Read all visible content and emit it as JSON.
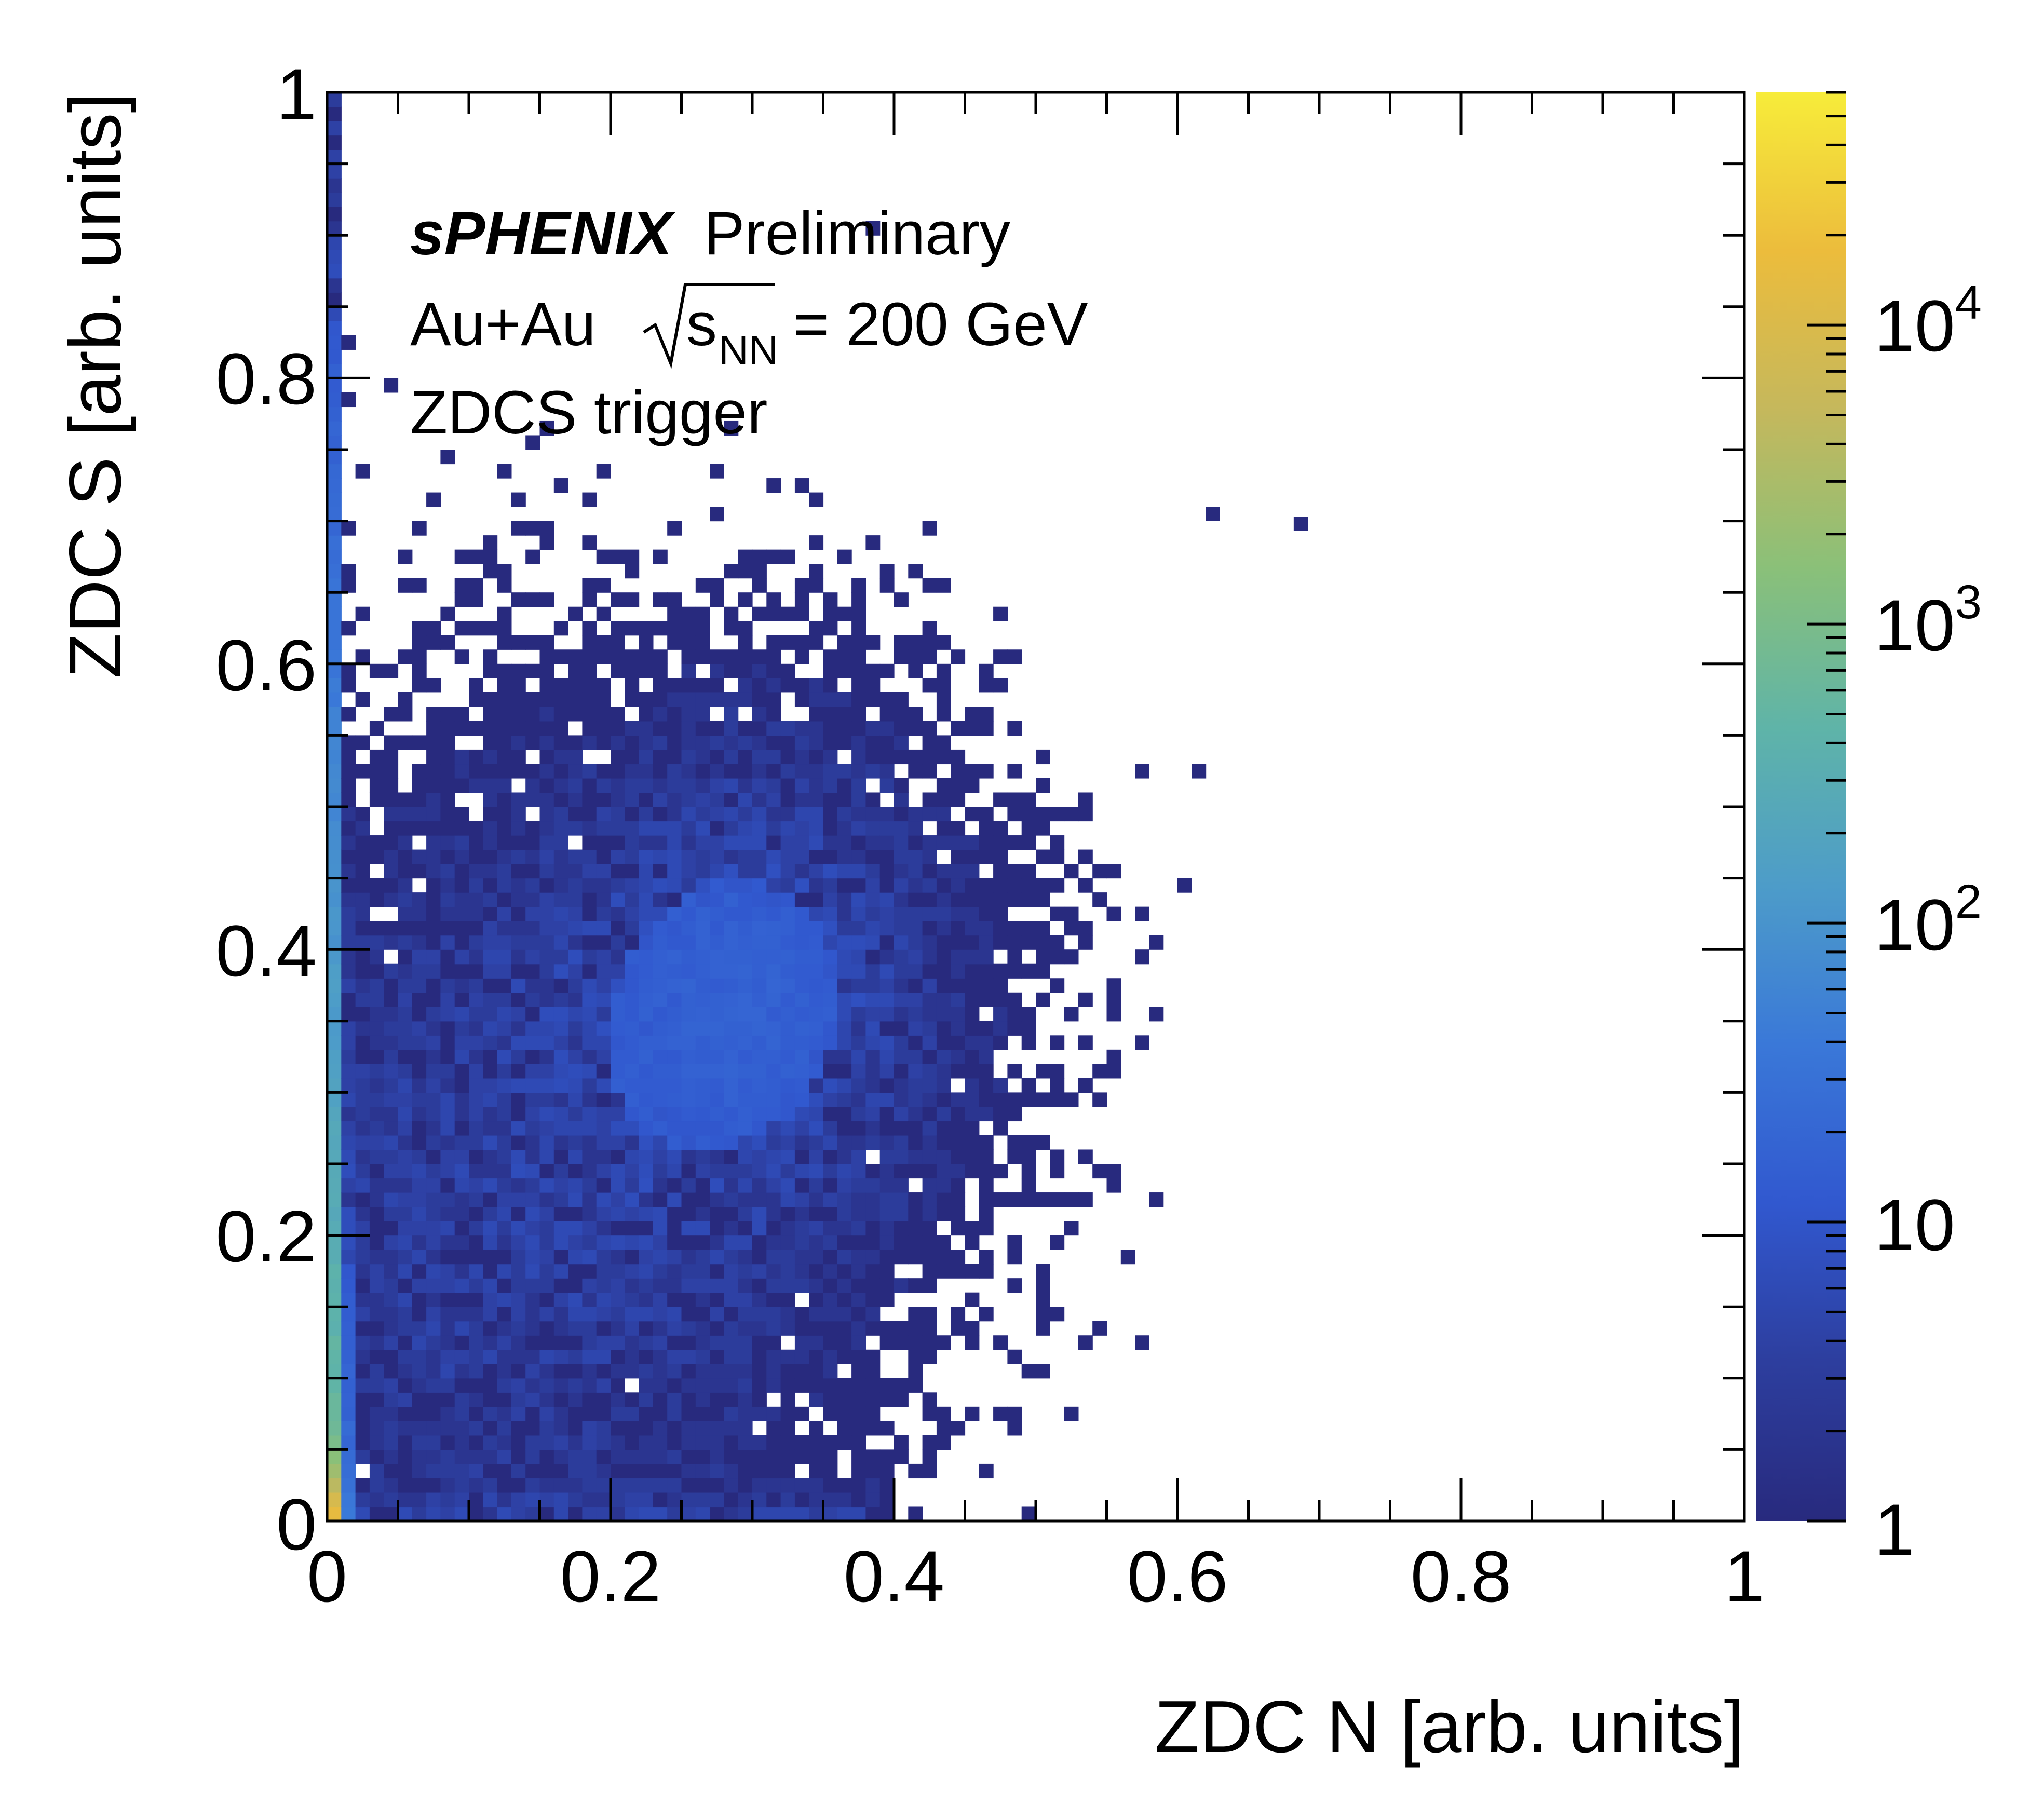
{
  "chart_data": {
    "type": "heatmap",
    "title": "",
    "xlabel": "ZDC N [arb. units]",
    "ylabel": "ZDC S [arb. units]",
    "xlim": [
      0,
      1
    ],
    "ylim": [
      0,
      1
    ],
    "x_ticks": [
      "0",
      "0.2",
      "0.4",
      "0.6",
      "0.8",
      "1"
    ],
    "y_ticks": [
      "0",
      "0.2",
      "0.4",
      "0.6",
      "0.8",
      "1"
    ],
    "annotations": {
      "experiment": "sPHENIX",
      "status": "Preliminary",
      "system": "Au+Au",
      "sqrt_label": "s",
      "sqrt_subscript": "NN",
      "energy": "= 200 GeV",
      "trigger": "ZDCS trigger"
    },
    "colorbar": {
      "scale": "log",
      "range": [
        1,
        60000
      ],
      "ticks": [
        {
          "value": 1,
          "base": "1",
          "exp": ""
        },
        {
          "value": 10,
          "base": "10",
          "exp": ""
        },
        {
          "value": 100,
          "base": "10",
          "exp": "2"
        },
        {
          "value": 1000,
          "base": "10",
          "exp": "3"
        },
        {
          "value": 10000,
          "base": "10",
          "exp": "4"
        }
      ],
      "palette": [
        "#282a7e",
        "#2d3e9e",
        "#3158cf",
        "#3a78d8",
        "#4d9cc9",
        "#5fb4a8",
        "#8ac079",
        "#c5b85c",
        "#ecbc3c",
        "#f7ec3a"
      ]
    },
    "bins": {
      "nx": 100,
      "ny": 100,
      "bin_width": 0.01
    },
    "distribution_description_values": {
      "edge_band_x_max": 0.01,
      "core_center": [
        0.3,
        0.37
      ],
      "diffuse_center": [
        0.13,
        0.22
      ]
    },
    "isolated_points": [
      {
        "x": 0.625,
        "y": 0.705,
        "count": 1
      },
      {
        "x": 0.687,
        "y": 0.698,
        "count": 1
      }
    ],
    "grid": false,
    "legend": "none"
  }
}
